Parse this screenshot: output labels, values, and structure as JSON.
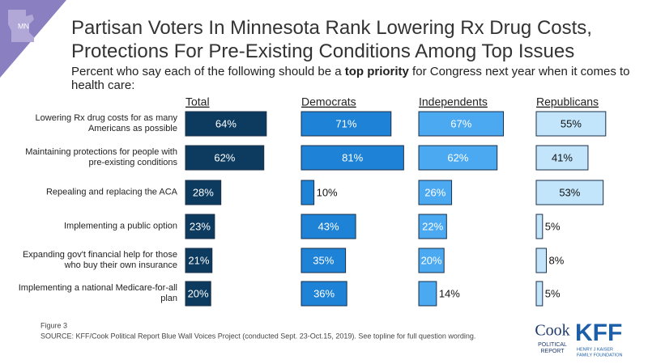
{
  "chart_data": {
    "type": "bar",
    "title": [
      "Partisan Voters In Minnesota Rank Lowering Rx Drug Costs,",
      "Protections For Pre-Existing Conditions Among Top Issues"
    ],
    "subtitle": [
      "Percent who say each of the following should be a ",
      "top priority",
      " for Congress next year when it comes to health care:"
    ],
    "categories": [
      "Lowering Rx drug costs for as many Americans as possible",
      "Maintaining protections for people with pre-existing conditions",
      "Repealing and replacing the ACA",
      "Implementing a public option",
      "Expanding gov't financial help for those who buy their own insurance",
      "Implementing a national Medicare-for-all plan"
    ],
    "series": [
      {
        "name": "Total",
        "color": "#0c3b5f",
        "values": [
          64,
          62,
          28,
          23,
          21,
          20
        ],
        "value_labels": [
          "64%",
          "62%",
          "28%",
          "23%",
          "21%",
          "20%"
        ]
      },
      {
        "name": "Democrats",
        "color": "#1e83d6",
        "values": [
          71,
          81,
          10,
          43,
          35,
          36
        ],
        "value_labels": [
          "71%",
          "81%",
          "10%",
          "43%",
          "35%",
          "36%"
        ]
      },
      {
        "name": "Independents",
        "color": "#4aa9f0",
        "values": [
          67,
          62,
          26,
          22,
          20,
          14
        ],
        "value_labels": [
          "67%",
          "62%",
          "26%",
          "22%",
          "20%",
          "14%"
        ]
      },
      {
        "name": "Republicans",
        "color": "#c2e5fb",
        "values": [
          55,
          41,
          53,
          5,
          8,
          5
        ],
        "value_labels": [
          "55%",
          "41%",
          "53%",
          "5%",
          "8%",
          "5%"
        ]
      }
    ]
  },
  "badge": "MN",
  "figure_label": "Figure 3",
  "source": "SOURCE: KFF/Cook Political Report Blue Wall Voices Project (conducted Sept. 23-Oct.15, 2019). See topline for full question wording.",
  "logos": {
    "cook": [
      "Cook",
      "POLITICAL",
      "REPORT"
    ],
    "kff": "KFF",
    "kff_name": [
      "HENRY J KAISER",
      "FAMILY FOUNDATION"
    ]
  }
}
